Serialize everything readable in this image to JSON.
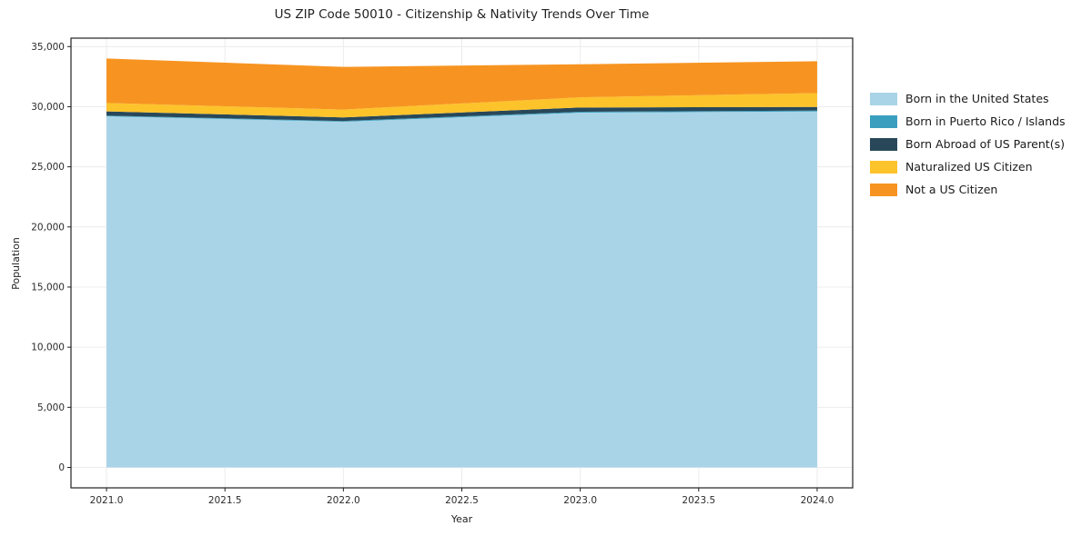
{
  "chart_data": {
    "type": "area",
    "stacked": true,
    "title": "US ZIP Code 50010 - Citizenship & Nativity Trends Over Time",
    "xlabel": "Year",
    "ylabel": "Population",
    "x": [
      2021,
      2022,
      2023,
      2024
    ],
    "series": [
      {
        "name": "Born in the United States",
        "color": "#a9d4e7",
        "values": [
          29200,
          28750,
          29500,
          29600
        ]
      },
      {
        "name": "Born in Puerto Rico / Islands",
        "color": "#3a9fbf",
        "values": [
          60,
          60,
          80,
          80
        ]
      },
      {
        "name": "Born Abroad of US Parent(s)",
        "color": "#28485a",
        "values": [
          350,
          300,
          350,
          300
        ]
      },
      {
        "name": "Naturalized US Citizen",
        "color": "#fdc32b",
        "values": [
          700,
          650,
          850,
          1150
        ]
      },
      {
        "name": "Not a US Citizen",
        "color": "#f79421",
        "values": [
          3700,
          3550,
          2750,
          2650
        ]
      }
    ],
    "x_ticks": [
      2021.0,
      2021.5,
      2022.0,
      2022.5,
      2023.0,
      2023.5,
      2024.0
    ],
    "x_tick_labels": [
      "2021.0",
      "2021.5",
      "2022.0",
      "2022.5",
      "2023.0",
      "2023.5",
      "2024.0"
    ],
    "y_ticks": [
      0,
      5000,
      10000,
      15000,
      20000,
      25000,
      30000,
      35000
    ],
    "y_tick_labels": [
      "0",
      "5,000",
      "10,000",
      "15,000",
      "20,000",
      "25,000",
      "30,000",
      "35,000"
    ],
    "xlim": [
      2020.85,
      2024.15
    ],
    "ylim": [
      -1700,
      35700
    ],
    "grid": true,
    "legend_position": "right"
  }
}
